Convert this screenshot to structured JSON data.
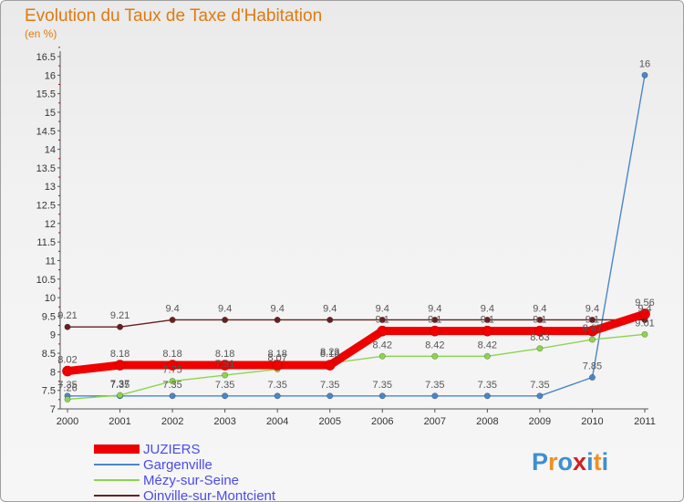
{
  "chart_data": {
    "type": "line",
    "title": "Evolution du Taux de Taxe d'Habitation",
    "subtitle": "(en %)",
    "xlabel": "",
    "ylabel": "",
    "x": [
      "2000",
      "2001",
      "2002",
      "2003",
      "2004",
      "2005",
      "2006",
      "2007",
      "2008",
      "2009",
      "2010",
      "2011"
    ],
    "ylim": [
      7,
      16.5
    ],
    "yticks": [
      "7",
      "7.5",
      "8",
      "8.5",
      "9",
      "9.5",
      "10",
      "10.5",
      "11",
      "11.5",
      "12",
      "12.5",
      "13",
      "13.5",
      "14",
      "14.5",
      "15",
      "15.5",
      "16",
      "16.5"
    ],
    "grid": false,
    "legend_position": "bottom-left",
    "series": [
      {
        "name": "JUZIERS",
        "color": "#ee0000",
        "values": [
          8.02,
          8.18,
          8.18,
          8.18,
          8.18,
          8.18,
          9.1,
          9.1,
          9.1,
          9.1,
          9.1,
          9.56
        ],
        "labels": [
          "8.02",
          "8.18",
          "8.18",
          "8.18",
          "8.18",
          "8.18",
          "9.1",
          "9.1",
          "9.1",
          "9.1",
          "9.1",
          "9.56"
        ]
      },
      {
        "name": "Gargenville",
        "color": "#4a86c8",
        "values": [
          7.35,
          7.35,
          7.35,
          7.35,
          7.35,
          7.35,
          7.35,
          7.35,
          7.35,
          7.35,
          7.85,
          16
        ],
        "labels": [
          "7.35",
          "7.35",
          "7.35",
          "7.35",
          "7.35",
          "7.35",
          "7.35",
          "7.35",
          "7.35",
          "7.35",
          "7.85",
          "16"
        ]
      },
      {
        "name": "Mézy-sur-Seine",
        "color": "#8cd450",
        "values": [
          7.26,
          7.37,
          7.75,
          7.91,
          8.07,
          8.23,
          8.42,
          8.42,
          8.42,
          8.63,
          8.87,
          9.01
        ],
        "labels": [
          "7.26",
          "7.37",
          "7.75",
          "7.91",
          "8.07",
          "8.23",
          "8.42",
          "8.42",
          "8.42",
          "8.63",
          "8.87",
          "9.01"
        ]
      },
      {
        "name": "Oinville-sur-Montcient",
        "color": "#6b1e1e",
        "values": [
          9.21,
          9.21,
          9.4,
          9.4,
          9.4,
          9.4,
          9.4,
          9.4,
          9.4,
          9.4,
          9.4,
          9.4
        ],
        "labels": [
          "9.21",
          "9.21",
          "9.4",
          "9.4",
          "9.4",
          "9.4",
          "9.4",
          "9.4",
          "9.4",
          "9.4",
          "9.4",
          "9.4"
        ]
      }
    ]
  },
  "logo": {
    "text": "Proxiti"
  }
}
